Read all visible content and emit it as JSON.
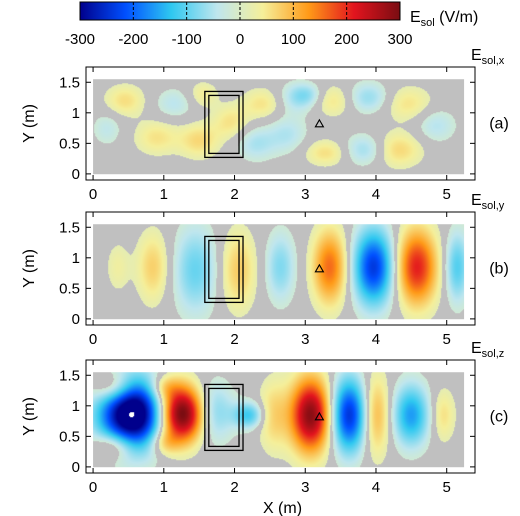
{
  "colorbar": {
    "label_main": "E",
    "label_sub": "sol",
    "label_unit": " (V/m)",
    "min": -300,
    "max": 300,
    "ticks": [
      "-300",
      "-200",
      "-100",
      "0",
      "100",
      "200",
      "300"
    ],
    "colors": [
      "#00008c",
      "#0050ff",
      "#2fc8f0",
      "#bfe6ee",
      "#f5ef9a",
      "#ff9a18",
      "#e2141e",
      "#7a0d12"
    ]
  },
  "background_color": "#c0c0c0",
  "chart_data": [
    {
      "type": "heatmap",
      "panel": "(a)",
      "component_main": "E",
      "component_sub": "sol,x",
      "xlabel": "",
      "ylabel": "Y (m)",
      "xlim": [
        -0.1,
        5.4
      ],
      "ylim": [
        -0.1,
        1.75
      ],
      "xticks": [
        "0",
        "1",
        "2",
        "3",
        "4",
        "5"
      ],
      "yticks": [
        "0",
        "0.5",
        "1",
        "1.5"
      ],
      "extent": {
        "x": [
          0,
          5.25
        ],
        "y": [
          0,
          1.55
        ]
      },
      "obstacle": {
        "x": [
          1.58,
          2.12
        ],
        "y": [
          0.27,
          1.35
        ]
      },
      "marker": {
        "x": 3.2,
        "y": 0.82
      },
      "field_features": [
        {
          "x": 0.45,
          "y": 1.2,
          "sx": 0.2,
          "sy": 0.18,
          "value": 60
        },
        {
          "x": 0.9,
          "y": 0.6,
          "sx": 0.22,
          "sy": 0.2,
          "value": 55
        },
        {
          "x": 0.2,
          "y": 0.75,
          "sx": 0.15,
          "sy": 0.2,
          "value": -40
        },
        {
          "x": 1.15,
          "y": 1.15,
          "sx": 0.2,
          "sy": 0.18,
          "value": -45
        },
        {
          "x": 1.5,
          "y": 0.55,
          "sx": 0.2,
          "sy": 0.2,
          "value": 65
        },
        {
          "x": 1.55,
          "y": 1.3,
          "sx": 0.15,
          "sy": 0.15,
          "value": 45
        },
        {
          "x": 1.95,
          "y": 0.85,
          "sx": 0.18,
          "sy": 0.2,
          "value": 55
        },
        {
          "x": 2.3,
          "y": 0.5,
          "sx": 0.2,
          "sy": 0.2,
          "value": -55
        },
        {
          "x": 2.4,
          "y": 1.15,
          "sx": 0.2,
          "sy": 0.18,
          "value": 55
        },
        {
          "x": 2.75,
          "y": 0.65,
          "sx": 0.2,
          "sy": 0.22,
          "value": -50
        },
        {
          "x": 2.9,
          "y": 1.25,
          "sx": 0.2,
          "sy": 0.18,
          "value": -60
        },
        {
          "x": 3.3,
          "y": 0.35,
          "sx": 0.22,
          "sy": 0.15,
          "value": 60
        },
        {
          "x": 3.05,
          "y": 1.3,
          "sx": 0.15,
          "sy": 0.12,
          "value": -40
        },
        {
          "x": 3.4,
          "y": 1.2,
          "sx": 0.2,
          "sy": 0.18,
          "value": 55
        },
        {
          "x": 3.85,
          "y": 0.4,
          "sx": 0.22,
          "sy": 0.18,
          "value": -70
        },
        {
          "x": 3.9,
          "y": 1.25,
          "sx": 0.22,
          "sy": 0.18,
          "value": -70
        },
        {
          "x": 4.3,
          "y": 0.4,
          "sx": 0.25,
          "sy": 0.2,
          "value": 70
        },
        {
          "x": 4.45,
          "y": 1.15,
          "sx": 0.25,
          "sy": 0.2,
          "value": 55
        },
        {
          "x": 4.85,
          "y": 0.8,
          "sx": 0.2,
          "sy": 0.2,
          "value": -50
        }
      ]
    },
    {
      "type": "heatmap",
      "panel": "(b)",
      "component_main": "E",
      "component_sub": "sol,y",
      "xlabel": "",
      "ylabel": "Y (m)",
      "xlim": [
        -0.1,
        5.4
      ],
      "ylim": [
        -0.1,
        1.75
      ],
      "xticks": [
        "0",
        "1",
        "2",
        "3",
        "4",
        "5"
      ],
      "yticks": [
        "0",
        "0.5",
        "1",
        "1.5"
      ],
      "extent": {
        "x": [
          0,
          5.25
        ],
        "y": [
          0,
          1.55
        ]
      },
      "obstacle": {
        "x": [
          1.58,
          2.12
        ],
        "y": [
          0.27,
          1.35
        ]
      },
      "marker": {
        "x": 3.2,
        "y": 0.82
      },
      "field_features": [
        {
          "x": 0.35,
          "y": 0.85,
          "sx": 0.12,
          "sy": 0.3,
          "value": 35
        },
        {
          "x": 0.85,
          "y": 0.85,
          "sx": 0.16,
          "sy": 0.4,
          "value": 75
        },
        {
          "x": 1.45,
          "y": 0.8,
          "sx": 0.22,
          "sy": 0.5,
          "value": -95
        },
        {
          "x": 2.05,
          "y": 0.8,
          "sx": 0.18,
          "sy": 0.45,
          "value": 80
        },
        {
          "x": 2.65,
          "y": 0.85,
          "sx": 0.15,
          "sy": 0.4,
          "value": -80
        },
        {
          "x": 3.35,
          "y": 0.85,
          "sx": 0.17,
          "sy": 0.42,
          "value": 160
        },
        {
          "x": 3.97,
          "y": 0.85,
          "sx": 0.2,
          "sy": 0.43,
          "value": -240
        },
        {
          "x": 4.58,
          "y": 0.85,
          "sx": 0.2,
          "sy": 0.43,
          "value": 210
        },
        {
          "x": 5.15,
          "y": 0.85,
          "sx": 0.12,
          "sy": 0.4,
          "value": -110
        }
      ]
    },
    {
      "type": "heatmap",
      "panel": "(c)",
      "component_main": "E",
      "component_sub": "sol,z",
      "xlabel": "X (m)",
      "ylabel": "Y (m)",
      "xlim": [
        -0.1,
        5.4
      ],
      "ylim": [
        -0.1,
        1.75
      ],
      "xticks": [
        "0",
        "1",
        "2",
        "3",
        "4",
        "5"
      ],
      "yticks": [
        "0",
        "0.5",
        "1",
        "1.5"
      ],
      "extent": {
        "x": [
          0,
          5.25
        ],
        "y": [
          0,
          1.55
        ]
      },
      "obstacle": {
        "x": [
          1.58,
          2.12
        ],
        "y": [
          0.27,
          1.35
        ]
      },
      "marker": {
        "x": 3.2,
        "y": 0.82
      },
      "field_features": [
        {
          "x": 0.3,
          "y": 1.3,
          "sx": 0.2,
          "sy": 0.18,
          "value": 110
        },
        {
          "x": 0.3,
          "y": 0.35,
          "sx": 0.2,
          "sy": 0.16,
          "value": 100
        },
        {
          "x": 0.55,
          "y": 0.87,
          "sx": 0.32,
          "sy": 0.4,
          "value": -380
        },
        {
          "x": 1.0,
          "y": 1.3,
          "sx": 0.15,
          "sy": 0.15,
          "value": 80
        },
        {
          "x": 1.0,
          "y": 0.4,
          "sx": 0.15,
          "sy": 0.15,
          "value": 80
        },
        {
          "x": 1.25,
          "y": 0.87,
          "sx": 0.22,
          "sy": 0.32,
          "value": 340
        },
        {
          "x": 1.7,
          "y": 0.9,
          "sx": 0.2,
          "sy": 0.35,
          "value": -90
        },
        {
          "x": 2.2,
          "y": 0.85,
          "sx": 0.15,
          "sy": 0.15,
          "value": -120
        },
        {
          "x": 2.55,
          "y": 0.85,
          "sx": 0.15,
          "sy": 0.4,
          "value": 70
        },
        {
          "x": 3.08,
          "y": 0.85,
          "sx": 0.2,
          "sy": 0.42,
          "value": 290
        },
        {
          "x": 3.62,
          "y": 0.85,
          "sx": 0.18,
          "sy": 0.42,
          "value": -250
        },
        {
          "x": 4.0,
          "y": 0.85,
          "sx": 0.14,
          "sy": 0.45,
          "value": 110
        },
        {
          "x": 4.5,
          "y": 0.85,
          "sx": 0.18,
          "sy": 0.35,
          "value": -160
        },
        {
          "x": 4.95,
          "y": 0.85,
          "sx": 0.12,
          "sy": 0.3,
          "value": 60
        }
      ]
    }
  ]
}
